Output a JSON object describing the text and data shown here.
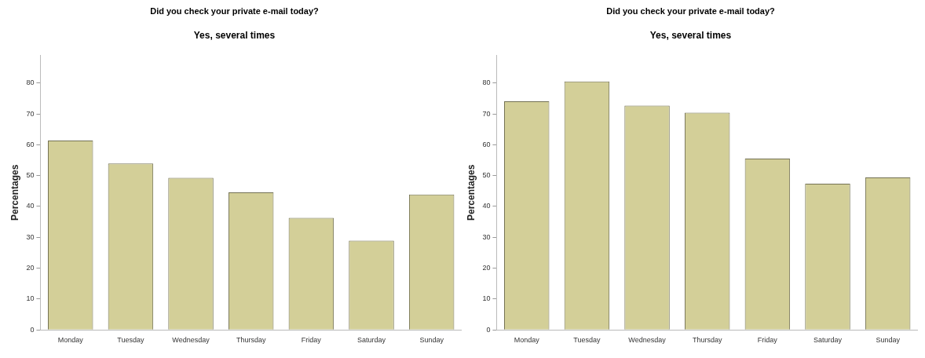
{
  "chart_data": [
    {
      "type": "bar",
      "title": "Did you check your private e-mail today?",
      "subtitle": "Yes, several times",
      "ylabel": "Percentages",
      "categories": [
        "Monday",
        "Tuesday",
        "Wednesday",
        "Thursday",
        "Friday",
        "Saturday",
        "Sunday"
      ],
      "values": [
        61.4,
        53.9,
        49.3,
        44.6,
        36.3,
        28.9,
        43.9
      ],
      "color": "#d3cf98",
      "ylim": [
        0,
        89
      ],
      "yticks": [
        0,
        10,
        20,
        30,
        40,
        50,
        60,
        70,
        80
      ],
      "grid": false,
      "legend": false
    },
    {
      "type": "bar",
      "title": "Did you check your private e-mail today?",
      "subtitle": "Yes, several times",
      "ylabel": "Percentages",
      "categories": [
        "Monday",
        "Tuesday",
        "Wednesday",
        "Thursday",
        "Friday",
        "Saturday",
        "Sunday"
      ],
      "values": [
        74.1,
        80.5,
        72.7,
        70.4,
        55.5,
        47.4,
        49.4
      ],
      "color": "#d3cf98",
      "ylim": [
        0,
        89
      ],
      "yticks": [
        0,
        10,
        20,
        30,
        40,
        50,
        60,
        70,
        80
      ],
      "grid": false,
      "legend": false
    }
  ]
}
